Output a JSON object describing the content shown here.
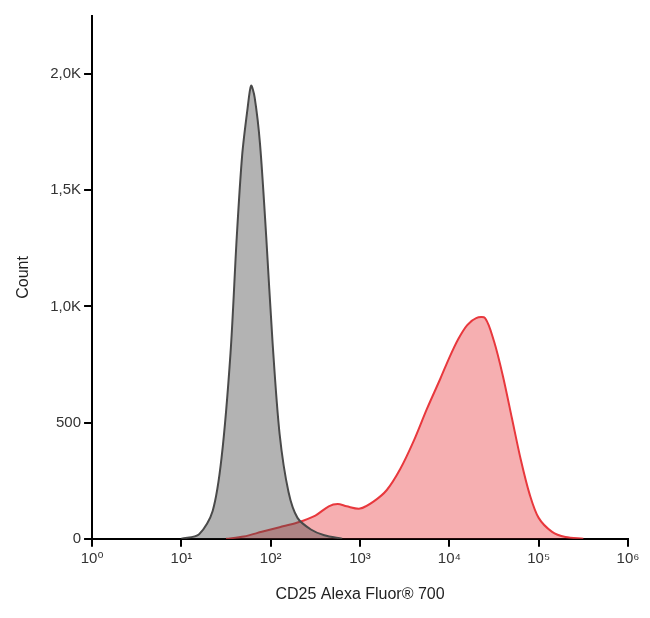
{
  "chart_data": {
    "type": "area",
    "x_label": "CD25 Alexa Fluor® 700",
    "y_label": "Count",
    "log": "x",
    "grid": false,
    "xlim": [
      1,
      1000000
    ],
    "xticks": [
      {
        "value": 1,
        "label": "10⁰"
      },
      {
        "value": 10,
        "label": "10¹"
      },
      {
        "value": 100,
        "label": "10²"
      },
      {
        "value": 1000,
        "label": "10³"
      },
      {
        "value": 10000,
        "label": "10⁴"
      },
      {
        "value": 100000,
        "label": "10⁵"
      },
      {
        "value": 1000000,
        "label": "10⁶"
      }
    ],
    "ylim": [
      0,
      2250
    ],
    "yticks": [
      0,
      500,
      {
        "value": 1000,
        "label": "1,0K"
      },
      {
        "value": 1500,
        "label": "1,5K"
      },
      {
        "value": 2000,
        "label": "2,0K"
      }
    ],
    "series": [
      {
        "color": "#4a4a4a",
        "x": [
          10,
          15.8,
          22.4,
          28.2,
          35.5,
          41.7,
          47.9,
          55,
          60.3,
          66.1,
          75.9,
          89.1,
          104.7,
          125.9,
          158.5,
          199.5,
          281.8,
          398.1,
          631
        ],
        "values": [
          0,
          20,
          120,
          350,
          800,
          1300,
          1650,
          1850,
          1950,
          1900,
          1700,
          1300,
          850,
          450,
          200,
          90,
          40,
          15,
          0
        ]
      },
      {
        "color": "#e8383d",
        "x": [
          31.6,
          50.1,
          79.4,
          125.9,
          199.5,
          316.2,
          446.7,
          562.3,
          707.9,
          1000,
          1412.5,
          1995.3,
          2818.4,
          3981.1,
          5623.4,
          7943.3,
          10000,
          12589,
          15849,
          19953,
          25119,
          31623,
          39811,
          50119,
          63096,
          79433,
          100000,
          141254,
          199526,
          316228
        ],
        "values": [
          0,
          10,
          30,
          50,
          70,
          100,
          140,
          150,
          140,
          130,
          160,
          210,
          300,
          420,
          560,
          690,
          780,
          860,
          920,
          950,
          950,
          850,
          700,
          520,
          340,
          190,
          90,
          30,
          8,
          0
        ]
      }
    ]
  }
}
